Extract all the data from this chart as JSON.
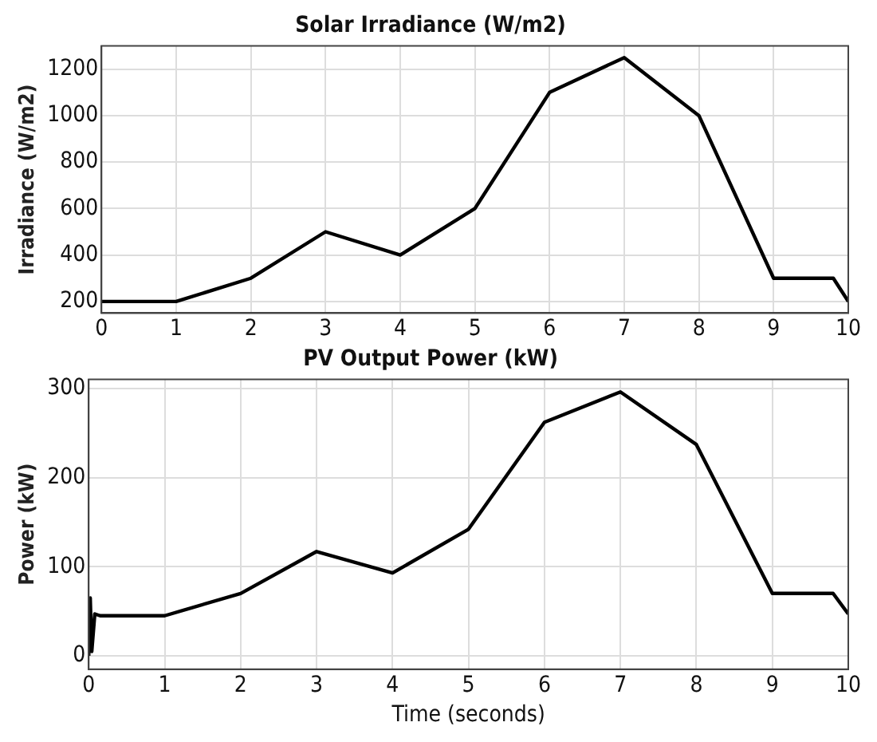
{
  "chart_data": [
    {
      "type": "line",
      "title": "Solar Irradiance (W/m2)",
      "ylabel": "Irradiance (W/m2)",
      "xlim": [
        0,
        10
      ],
      "xticks": [
        0,
        1,
        2,
        3,
        4,
        5,
        6,
        7,
        8,
        9,
        10
      ],
      "ylim": [
        150,
        1300
      ],
      "yticks": [
        200,
        400,
        600,
        800,
        1000,
        1200
      ],
      "grid": true,
      "legend": false,
      "marker": "none",
      "line_style": "solid",
      "series": [
        {
          "color": "#000000",
          "x": [
            0,
            1,
            2,
            3,
            4,
            5,
            6,
            7,
            8,
            9,
            9.8,
            10
          ],
          "values": [
            200,
            200,
            300,
            500,
            400,
            600,
            1100,
            1250,
            1000,
            300,
            300,
            200
          ]
        }
      ]
    },
    {
      "type": "line",
      "title": "PV Output Power (kW)",
      "xlabel": "Time (seconds)",
      "ylabel": "Power (kW)",
      "xlim": [
        0,
        10
      ],
      "xticks": [
        0,
        1,
        2,
        3,
        4,
        5,
        6,
        7,
        8,
        9,
        10
      ],
      "ylim": [
        -15,
        310
      ],
      "yticks": [
        0,
        100,
        200,
        300
      ],
      "grid": true,
      "legend": false,
      "marker": "none",
      "line_style": "solid",
      "series": [
        {
          "color": "#000000",
          "x": [
            0,
            0.02,
            0.04,
            0.08,
            0.15,
            1,
            2,
            3,
            4,
            5,
            6,
            7,
            8,
            9,
            9.8,
            10
          ],
          "values": [
            0,
            65,
            5,
            47,
            45,
            45,
            70,
            117,
            93,
            142,
            262,
            296,
            237,
            70,
            70,
            47
          ]
        }
      ]
    }
  ]
}
